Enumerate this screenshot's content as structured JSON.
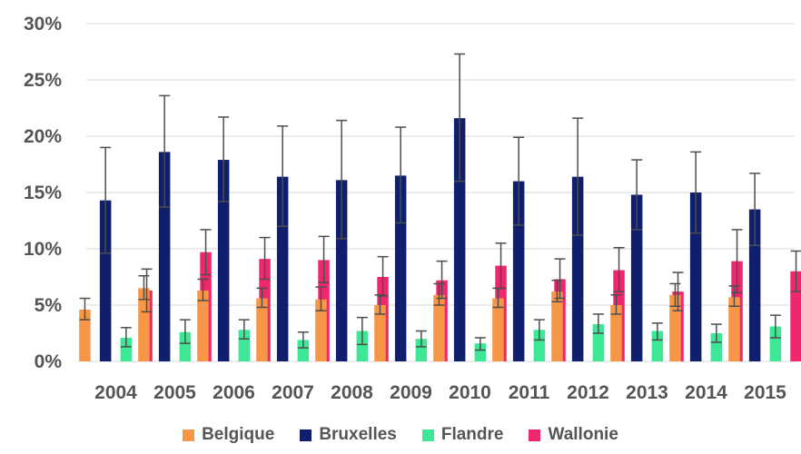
{
  "chart_data": {
    "type": "bar",
    "title": "",
    "xlabel": "",
    "ylabel": "",
    "ylim": [
      0,
      30
    ],
    "y_ticks": [
      "0%",
      "5%",
      "10%",
      "15%",
      "20%",
      "25%",
      "30%"
    ],
    "grid": true,
    "legend_position": "bottom",
    "categories": [
      "2004",
      "2005",
      "2006",
      "2007",
      "2008",
      "2009",
      "2010",
      "2011",
      "2012",
      "2013",
      "2014",
      "2015"
    ],
    "series": [
      {
        "name": "Belgique",
        "color": "#F79646",
        "values": [
          4.6,
          6.5,
          6.3,
          5.6,
          5.5,
          5.0,
          5.9,
          5.6,
          6.2,
          5.0,
          5.9,
          5.7
        ],
        "err_low": [
          3.7,
          5.5,
          5.4,
          4.8,
          4.5,
          4.2,
          5.0,
          4.8,
          5.3,
          4.2,
          4.9,
          4.9
        ],
        "err_high": [
          5.6,
          7.6,
          7.3,
          6.5,
          6.6,
          5.9,
          6.9,
          6.5,
          7.2,
          5.9,
          6.9,
          6.7
        ]
      },
      {
        "name": "Bruxelles",
        "color": "#0F1F6E",
        "values": [
          14.3,
          18.6,
          17.9,
          16.4,
          16.1,
          16.5,
          21.6,
          16.0,
          16.4,
          14.8,
          15.0,
          13.5
        ],
        "err_low": [
          9.6,
          13.7,
          14.2,
          12.0,
          10.9,
          12.3,
          16.0,
          12.1,
          11.2,
          11.7,
          11.4,
          10.3
        ],
        "err_high": [
          19.0,
          23.6,
          21.7,
          20.9,
          21.4,
          20.8,
          27.3,
          19.9,
          21.6,
          17.9,
          18.6,
          16.7
        ]
      },
      {
        "name": "Flandre",
        "color": "#3CE896",
        "values": [
          2.1,
          2.6,
          2.8,
          1.9,
          2.7,
          2.0,
          1.6,
          2.8,
          3.3,
          2.7,
          2.5,
          3.1
        ],
        "err_low": [
          1.3,
          1.6,
          2.0,
          1.2,
          1.5,
          1.3,
          1.0,
          1.9,
          2.5,
          1.9,
          1.7,
          2.1
        ],
        "err_high": [
          3.0,
          3.7,
          3.7,
          2.6,
          3.9,
          2.7,
          2.1,
          3.7,
          4.2,
          3.4,
          3.3,
          4.1
        ]
      },
      {
        "name": "Wallonie",
        "color": "#F0266E",
        "values": [
          6.3,
          9.7,
          9.1,
          9.0,
          7.5,
          7.2,
          8.5,
          7.3,
          8.1,
          6.2,
          8.9,
          8.0
        ],
        "err_low": [
          4.4,
          7.7,
          7.3,
          7.0,
          5.8,
          5.6,
          6.5,
          5.6,
          6.2,
          4.5,
          6.1,
          6.2
        ],
        "err_high": [
          8.2,
          11.7,
          11.0,
          11.1,
          9.3,
          8.9,
          10.5,
          9.1,
          10.1,
          7.9,
          11.7,
          9.8
        ]
      }
    ]
  }
}
